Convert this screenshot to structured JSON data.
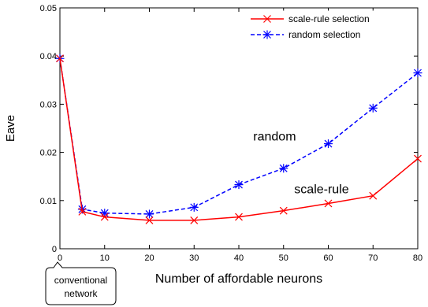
{
  "chart_data": {
    "type": "line",
    "xlabel": "Number of affordable neurons",
    "ylabel": "Eave",
    "xlim": [
      0,
      80
    ],
    "ylim": [
      0,
      0.05
    ],
    "xticks": [
      0,
      10,
      20,
      30,
      40,
      50,
      60,
      70,
      80
    ],
    "yticks": [
      0,
      0.01,
      0.02,
      0.03,
      0.04,
      0.05
    ],
    "xtick_labels": [
      "0",
      "10",
      "20",
      "30",
      "40",
      "50",
      "60",
      "70",
      "80"
    ],
    "ytick_labels": [
      "0",
      "0.01",
      "0.02",
      "0.03",
      "0.04",
      "0.05"
    ],
    "grid": false,
    "legend_position": "top-right",
    "series": [
      {
        "name": "scale-rule selection",
        "color": "#ff0000",
        "line_style": "solid",
        "marker": "x",
        "x": [
          0,
          5,
          10,
          20,
          30,
          40,
          50,
          60,
          70,
          80
        ],
        "y": [
          0.0395,
          0.0077,
          0.0066,
          0.0059,
          0.0059,
          0.0066,
          0.0079,
          0.0094,
          0.011,
          0.0187
        ]
      },
      {
        "name": "random selection",
        "color": "#0000ff",
        "line_style": "dashed",
        "marker": "asterisk",
        "x": [
          0,
          5,
          10,
          20,
          30,
          40,
          50,
          60,
          70,
          80
        ],
        "y": [
          0.0395,
          0.0082,
          0.0074,
          0.0072,
          0.0086,
          0.0133,
          0.0167,
          0.0218,
          0.0292,
          0.0365
        ]
      }
    ],
    "annotations": [
      {
        "text": "random",
        "x": 48,
        "y": 0.0225
      },
      {
        "text": "scale-rule",
        "x": 58.5,
        "y": 0.0115
      }
    ],
    "callout": {
      "line1": "conventional",
      "line2": "network"
    }
  }
}
